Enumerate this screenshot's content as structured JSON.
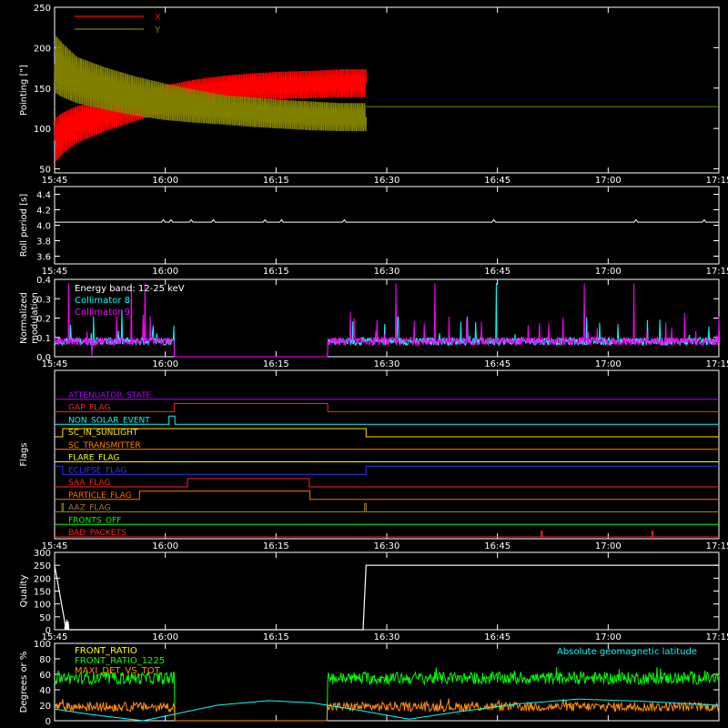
{
  "colors": {
    "background": "#000000",
    "frame": "#ffffff",
    "x_pointing": "#ff0000",
    "y_pointing": "#808000",
    "collimator_8": "#00ffff",
    "collimator_9": "#ff00ff",
    "front_ratio": "#ffff00",
    "front_ratio_1225": "#00ff00",
    "maxi_det": "#ff8c00",
    "geomag": "#00ffff"
  },
  "time_axis": {
    "range_minutes": [
      15.0,
      105.0
    ],
    "tick_minutes": [
      15,
      30,
      45,
      60,
      75,
      90,
      105,
      120
    ],
    "tick_labels": [
      "15:45",
      "16:00",
      "16:15",
      "16:30",
      "16:45",
      "17:00",
      "17:15"
    ]
  },
  "chart_data": [
    {
      "type": "line",
      "panel": "pointing",
      "ylabel": "Pointing [\"]",
      "ylim": [
        45,
        250
      ],
      "yticks": [
        50,
        100,
        150,
        200,
        250
      ],
      "x_units": "minutes after 15:45 start",
      "series": [
        {
          "name": "X",
          "color": "#ff0000",
          "x": [
            14.9,
            15.05,
            16,
            18,
            22,
            26,
            30,
            34,
            38,
            42,
            46,
            50,
            54,
            57.2
          ],
          "ymin": [
            127,
            55,
            65,
            80,
            95,
            108,
            118,
            125,
            130,
            133,
            135,
            136,
            137,
            137
          ],
          "ymax": [
            127,
            115,
            122,
            130,
            137,
            145,
            155,
            162,
            167,
            170,
            172,
            173,
            175,
            175
          ]
        },
        {
          "name": "Y",
          "color": "#808000",
          "x": [
            14.9,
            15.05,
            16,
            18,
            22,
            26,
            30,
            34,
            38,
            42,
            46,
            50,
            54,
            57.2
          ],
          "ymin": [
            127,
            140,
            135,
            128,
            120,
            113,
            108,
            105,
            103,
            100,
            98,
            96,
            95,
            95
          ],
          "ymax": [
            127,
            220,
            210,
            192,
            178,
            167,
            158,
            150,
            143,
            140,
            137,
            135,
            133,
            133
          ]
        }
      ],
      "baseline": 127,
      "legend": "top-left"
    },
    {
      "type": "line",
      "panel": "roll_period",
      "ylabel": "Roll period [s]",
      "ylim": [
        3.5,
        4.5
      ],
      "yticks": [
        3.6,
        3.8,
        4.0,
        4.2,
        4.4
      ],
      "value": 4.04
    },
    {
      "type": "line",
      "panel": "modulation",
      "ylabel": "Normalized modulation",
      "ylim": [
        0,
        0.4
      ],
      "yticks": [
        0.0,
        0.1,
        0.2,
        0.3,
        0.4
      ],
      "annotation": "Energy band: 12-25 keV",
      "series": [
        {
          "name": "Collimator 8",
          "color": "#00ffff"
        },
        {
          "name": "Collimator 9",
          "color": "#ff00ff"
        }
      ],
      "data_gap_minutes": [
        31.2,
        52.0
      ],
      "baseline": 0.08
    },
    {
      "type": "line",
      "panel": "flags",
      "ylabel": "Flags",
      "flags": [
        {
          "name": "ATTENUATOR_STATE",
          "color": "#b000ff",
          "steps": [
            [
              15,
              0
            ]
          ]
        },
        {
          "name": "GAP_FLAG",
          "color": "#ff2020",
          "steps": [
            [
              15,
              0
            ],
            [
              31.2,
              1
            ],
            [
              52,
              0
            ]
          ]
        },
        {
          "name": "NON_SOLAR_EVENT",
          "color": "#00ffff",
          "steps": [
            [
              15,
              0
            ],
            [
              30.5,
              1
            ],
            [
              31.3,
              0
            ]
          ]
        },
        {
          "name": "SC_IN_SUNLIGHT",
          "color": "#ffe000",
          "steps": [
            [
              15,
              0
            ],
            [
              16.1,
              1
            ],
            [
              57.2,
              0
            ]
          ]
        },
        {
          "name": "SC_TRANSMITTER",
          "color": "#ff8000",
          "steps": [
            [
              15,
              0
            ]
          ]
        },
        {
          "name": "FLARE_FLAG",
          "color": "#ffff00",
          "steps": [
            [
              15,
              0
            ]
          ]
        },
        {
          "name": "ECLIPSE_FLAG",
          "color": "#3030ff",
          "steps": [
            [
              15,
              1
            ],
            [
              16.1,
              0
            ],
            [
              57.2,
              1
            ]
          ]
        },
        {
          "name": "SAA_FLAG",
          "color": "#ff2020",
          "steps": [
            [
              15,
              0
            ],
            [
              33,
              1
            ],
            [
              49.5,
              0
            ]
          ]
        },
        {
          "name": "PARTICLE_FLAG",
          "color": "#ff7000",
          "steps": [
            [
              15,
              0
            ],
            [
              26.5,
              1
            ],
            [
              49.3,
              2
            ],
            [
              49.6,
              0
            ]
          ]
        },
        {
          "name": "AAZ_FLAG",
          "color": "#a08020",
          "steps": [
            [
              15,
              0
            ],
            [
              16.0,
              1
            ],
            [
              16.2,
              0
            ],
            [
              57.0,
              1
            ],
            [
              57.2,
              0
            ]
          ]
        },
        {
          "name": "FRONTS_OFF",
          "color": "#00ff00",
          "steps": [
            [
              15,
              0
            ]
          ]
        },
        {
          "name": "BAD_PACKETS",
          "color": "#ff2020",
          "steps": [
            [
              15,
              0
            ]
          ],
          "spikes": [
            81,
            96
          ]
        }
      ]
    },
    {
      "type": "line",
      "panel": "quality",
      "ylabel": "Quality",
      "ylim": [
        0,
        300
      ],
      "yticks": [
        0,
        50,
        100,
        150,
        200,
        250,
        300
      ],
      "x": [
        14.9,
        15.0,
        16.5,
        17.0,
        56.8,
        57.2,
        105
      ],
      "y": [
        250,
        250,
        10,
        0,
        0,
        250,
        250
      ]
    },
    {
      "type": "line",
      "panel": "ratios",
      "ylabel": "Degrees or %",
      "ylim": [
        0,
        100
      ],
      "yticks": [
        0,
        20,
        40,
        60,
        80,
        100
      ],
      "series": [
        {
          "name": "FRONT_RATIO",
          "color": "#ffff00"
        },
        {
          "name": "FRONT_RATIO_1225",
          "color": "#00ff00",
          "level": 55
        },
        {
          "name": "MAXI_DET_VS_TOT",
          "color": "#ff8c00",
          "level": 18
        },
        {
          "name": "Absolute geomagnetic latitude",
          "color": "#00ffff",
          "x": [
            15,
            20,
            27,
            32,
            37,
            44,
            50,
            56,
            63,
            70,
            78,
            86,
            95,
            105
          ],
          "y": [
            15,
            8,
            0,
            10,
            20,
            26,
            23,
            14,
            2,
            12,
            22,
            28,
            25,
            20
          ]
        }
      ],
      "data_gap_minutes": [
        31.3,
        52.0
      ]
    }
  ]
}
